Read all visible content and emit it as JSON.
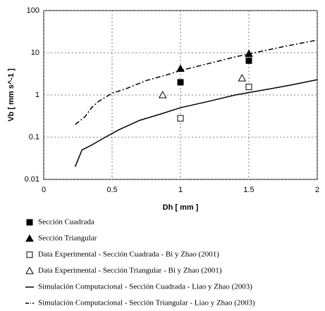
{
  "chart_data": {
    "type": "scatter",
    "x_label": "Dh [ mm ]",
    "y_label": "Vb [ mm s^-1 ]",
    "xlim": [
      0,
      2
    ],
    "ylim": [
      0.01,
      100
    ],
    "xticks": [
      0,
      0.5,
      1,
      1.5,
      2
    ],
    "yticks": [
      0.01,
      0.1,
      1,
      10,
      100
    ],
    "log_y": true,
    "grid": true,
    "series": [
      {
        "name": "Sección Cuadrada",
        "color": "#000000",
        "marker": "square",
        "filled": true,
        "x": [
          1,
          1.5
        ],
        "values": [
          2,
          6.5
        ]
      },
      {
        "name": "Sección Triangular",
        "color": "#000000",
        "marker": "triangle",
        "filled": true,
        "x": [
          1,
          1.5
        ],
        "values": [
          4.2,
          9.5
        ]
      },
      {
        "name": "Data Experimental - Sección Cuadrada - Bi y Zhao (2001)",
        "color": "#000000",
        "marker": "square",
        "filled": false,
        "x": [
          1,
          1.5
        ],
        "values": [
          0.28,
          1.55
        ]
      },
      {
        "name": "Data Experimental - Sección Triangular - Bi y Zhao (2001)",
        "color": "#000000",
        "marker": "triangle",
        "filled": false,
        "x": [
          0.87,
          1.45
        ],
        "values": [
          1.0,
          2.5
        ]
      },
      {
        "name": "Simulación  Computacional  - Sección Cuadrada - Liao y Zhao (2003)",
        "color": "#000000",
        "line": "solid",
        "x": [
          0.23,
          0.28,
          0.35,
          0.45,
          0.55,
          0.7,
          0.85,
          1,
          1.2,
          1.4,
          1.6,
          1.8,
          2
        ],
        "values": [
          0.02,
          0.05,
          0.065,
          0.1,
          0.15,
          0.25,
          0.35,
          0.5,
          0.7,
          1.0,
          1.3,
          1.7,
          2.3
        ]
      },
      {
        "name": "Simulación  Computacional  - Sección Triangular - Liao y Zhao (2003)",
        "color": "#000000",
        "line": "dashdot",
        "x": [
          0.23,
          0.3,
          0.35,
          0.4,
          0.5,
          0.6,
          0.75,
          0.9,
          1,
          1.2,
          1.4,
          1.6,
          1.8,
          2
        ],
        "values": [
          0.2,
          0.3,
          0.5,
          0.7,
          1.1,
          1.4,
          2.2,
          3.0,
          3.8,
          5.5,
          8,
          11,
          15,
          20
        ]
      }
    ]
  }
}
